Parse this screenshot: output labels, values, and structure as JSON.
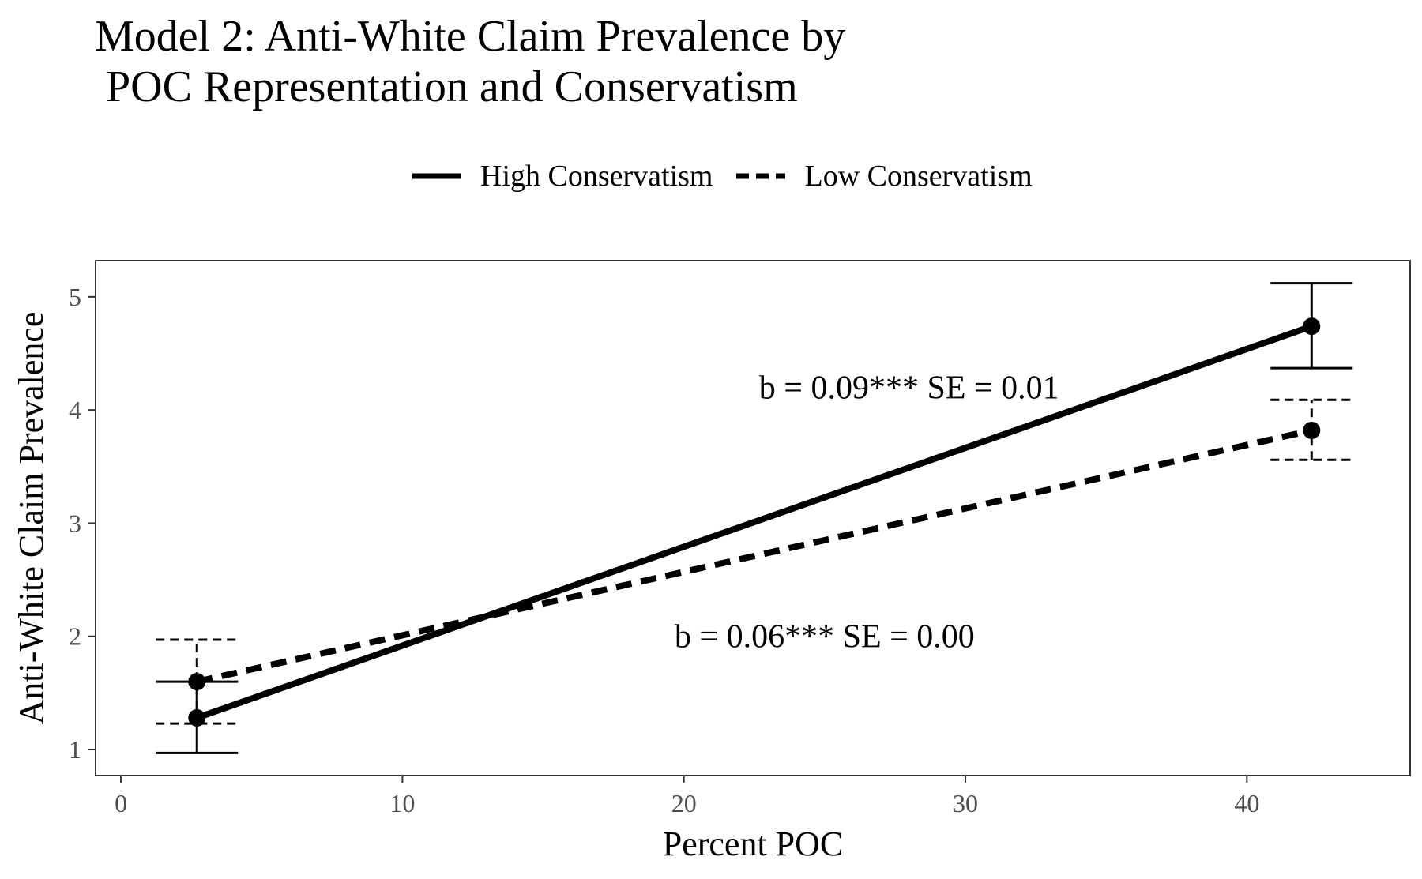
{
  "chart_data": {
    "type": "line",
    "title": "Model 2: Anti-White Claim Prevalence by\n POC Representation and Conservatism",
    "xlabel": "Percent POC",
    "ylabel": "Anti-White Claim Prevalence",
    "xlim": [
      -0.9,
      45.8
    ],
    "ylim": [
      0.77,
      5.32
    ],
    "x_ticks": [
      0,
      10,
      20,
      30,
      40
    ],
    "y_ticks": [
      1,
      2,
      3,
      4,
      5
    ],
    "grid": false,
    "legend_position": "top",
    "series": [
      {
        "name": "High Conservatism",
        "linetype": "solid",
        "x": [
          2.7,
          42.3
        ],
        "y": [
          1.28,
          4.74
        ],
        "error_low": [
          0.97,
          4.37
        ],
        "error_high": [
          1.6,
          5.12
        ]
      },
      {
        "name": "Low Conservatism",
        "linetype": "dashed",
        "x": [
          2.7,
          42.3
        ],
        "y": [
          1.6,
          3.82
        ],
        "error_low": [
          1.23,
          3.56
        ],
        "error_high": [
          1.97,
          4.09
        ]
      }
    ],
    "annotations": [
      {
        "text": "b = 0.09*** SE = 0.01",
        "x": 28.0,
        "y": 4.2
      },
      {
        "text": "b = 0.06*** SE = 0.00",
        "x": 25.0,
        "y": 2.0
      }
    ]
  }
}
